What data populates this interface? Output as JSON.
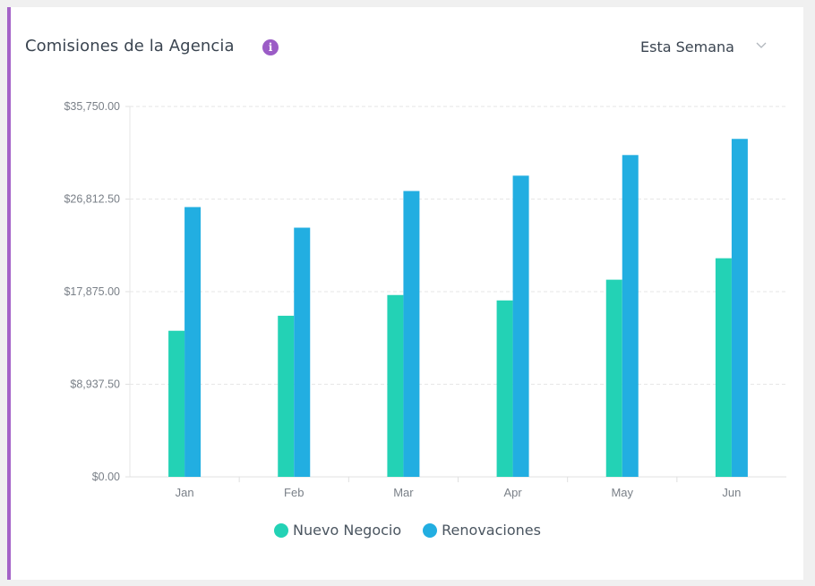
{
  "header": {
    "title": "Comisiones de la Agencia",
    "info_icon": "info-icon",
    "period_label": "Esta Semana",
    "period_icon": "chevron-down-icon"
  },
  "colors": {
    "accent": "#a463c8",
    "nuevo": "#23d2b5",
    "renovaciones": "#22aee1"
  },
  "chart_data": {
    "type": "bar",
    "title": "",
    "xlabel": "",
    "ylabel": "",
    "categories": [
      "Jan",
      "Feb",
      "Mar",
      "Apr",
      "May",
      "Jun"
    ],
    "series": [
      {
        "name": "Nuevo Negocio",
        "color": "#23d2b5",
        "values": [
          14100,
          15550,
          17550,
          17030,
          19030,
          21100
        ]
      },
      {
        "name": "Renovaciones",
        "color": "#22aee1",
        "values": [
          26040,
          24050,
          27590,
          29070,
          31060,
          32620
        ]
      }
    ],
    "ylim": [
      0,
      35750
    ],
    "yticks": [
      0,
      8937.5,
      17875,
      26812.5,
      35750
    ],
    "ytick_labels": [
      "$0.00",
      "$8,937.50",
      "$17,875.00",
      "$26,812.50",
      "$35,750.00"
    ],
    "grid": true,
    "legend": "bottom"
  }
}
